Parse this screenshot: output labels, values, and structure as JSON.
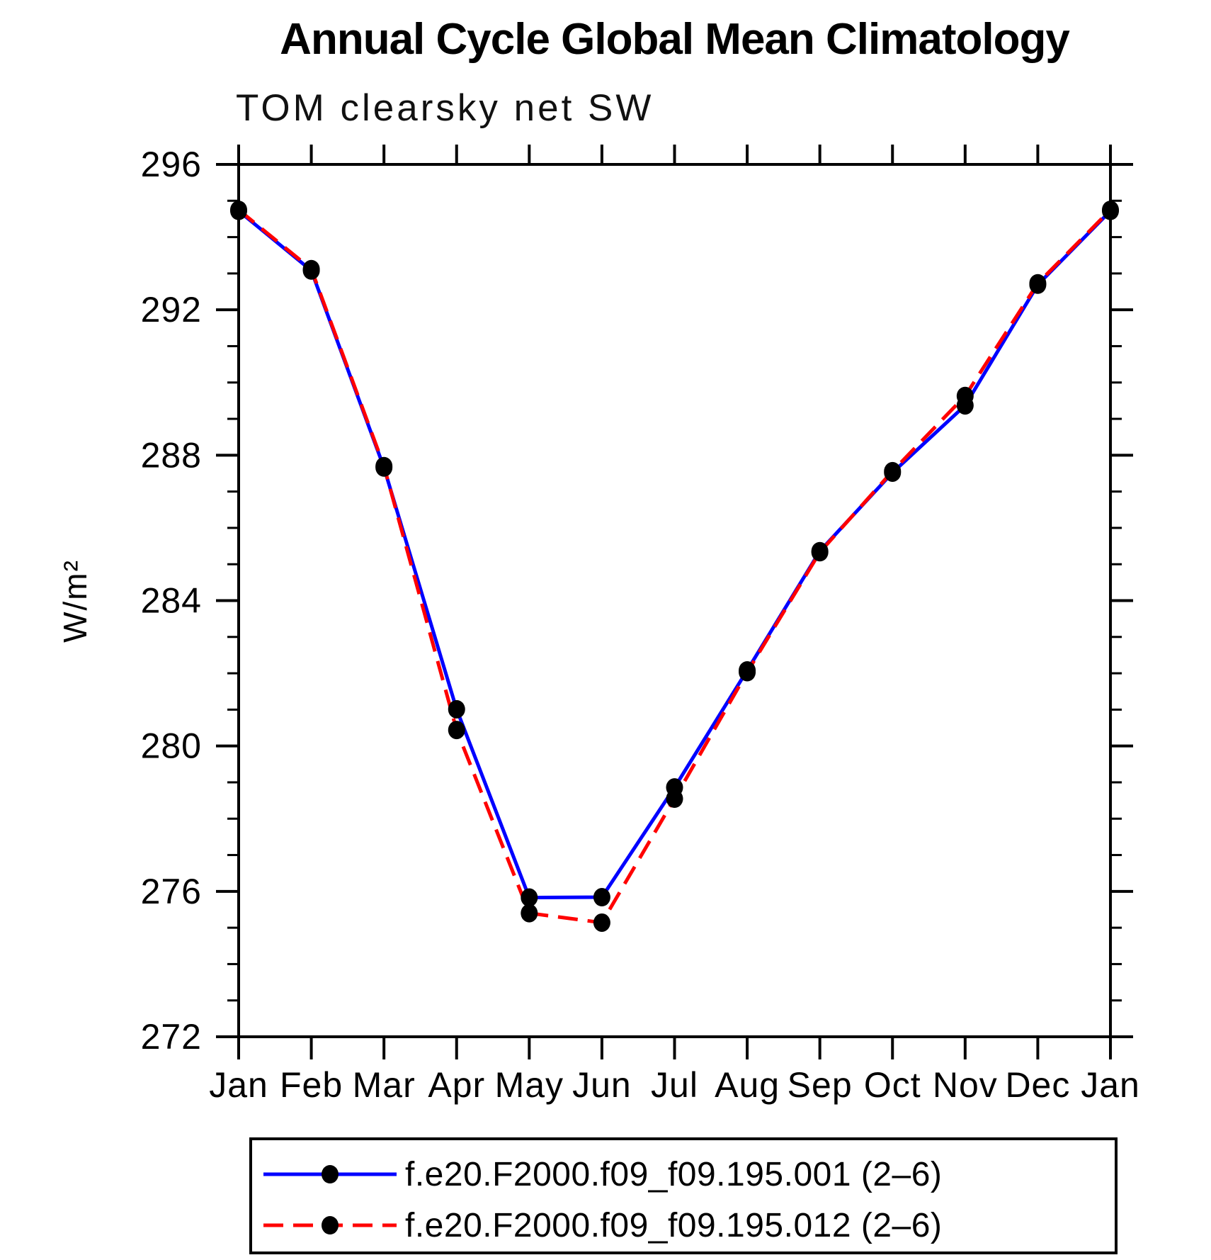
{
  "chart_data": {
    "type": "line",
    "title": "Annual Cycle Global Mean Climatology",
    "subtitle": "TOM clearsky net SW",
    "ylabel": "W/m²",
    "ylim": [
      272,
      296
    ],
    "yticks": [
      272,
      276,
      280,
      284,
      288,
      292,
      296
    ],
    "ytick_minor_interval": 1,
    "grid": false,
    "legend_position": "bottom",
    "categories": [
      "Jan",
      "Feb",
      "Mar",
      "Apr",
      "May",
      "Jun",
      "Jul",
      "Aug",
      "Sep",
      "Oct",
      "Nov",
      "Dec",
      "Jan"
    ],
    "series": [
      {
        "name": "f.e20.F2000.f09_f09.195.001 (2–6)",
        "color": "#0000ff",
        "line_style": "solid",
        "marker": "filled-circle",
        "marker_color": "#000000",
        "values": [
          294.72,
          293.08,
          287.66,
          281.01,
          275.83,
          275.84,
          278.86,
          282.08,
          285.36,
          287.52,
          289.37,
          292.69,
          294.72
        ]
      },
      {
        "name": "f.e20.F2000.f09_f09.195.012 (2–6)",
        "color": "#ff0000",
        "line_style": "dashed",
        "marker": "filled-circle",
        "marker_color": "#000000",
        "values": [
          294.75,
          293.12,
          287.7,
          280.44,
          275.4,
          275.14,
          278.55,
          282.03,
          285.33,
          287.56,
          289.63,
          292.73,
          294.75
        ]
      }
    ]
  }
}
